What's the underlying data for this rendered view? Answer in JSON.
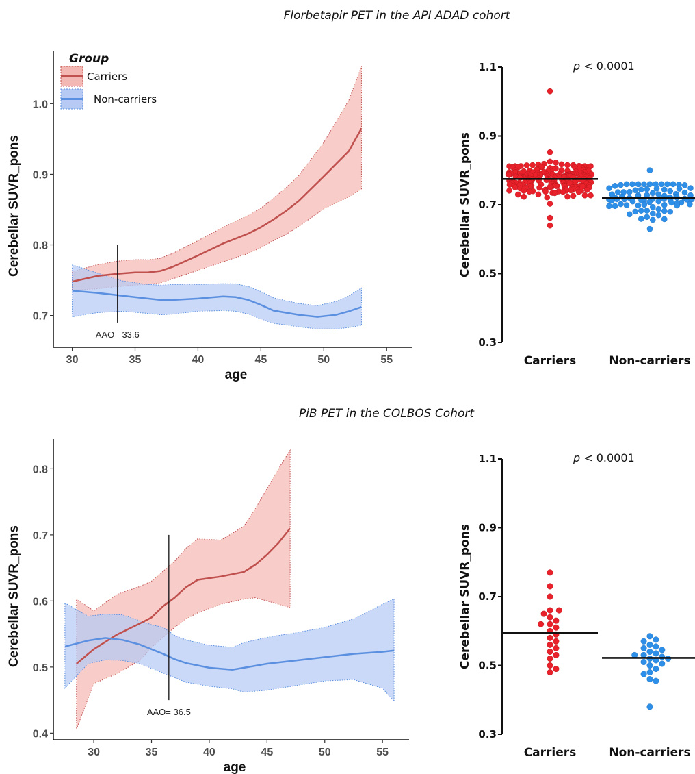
{
  "section_titles": [
    "Florbetapir PET in the API ADAD cohort",
    "PiB PET in the COLBOS Cohort"
  ],
  "colors": {
    "carriers_line": "#c0504d",
    "carriers_fill": "#f4b8b4",
    "noncarriers_line": "#5b8fe0",
    "noncarriers_fill": "#b6caf4",
    "carriers_dot": "#e8212a",
    "noncarriers_dot": "#2e8fe8"
  },
  "chart_data": [
    {
      "id": "api-line",
      "type": "line",
      "xlabel": "age",
      "ylabel": "Cerebellar SUVR_pons",
      "xlim": [
        28.5,
        57
      ],
      "ylim": [
        0.655,
        1.075
      ],
      "xticks": [
        30,
        35,
        40,
        45,
        50,
        55
      ],
      "yticks": [
        0.7,
        0.8,
        0.9,
        1.0
      ],
      "legend": {
        "title": "Group",
        "placement": "top-left",
        "items": [
          "Carriers",
          "Non-carriers"
        ]
      },
      "series": [
        {
          "name": "Carriers",
          "x": [
            30,
            32,
            33.6,
            35,
            36,
            37,
            38,
            40,
            42,
            44,
            45,
            46,
            47,
            48,
            50,
            52,
            53
          ],
          "y": [
            0.748,
            0.756,
            0.759,
            0.761,
            0.761,
            0.763,
            0.769,
            0.785,
            0.802,
            0.816,
            0.825,
            0.836,
            0.848,
            0.862,
            0.897,
            0.933,
            0.965
          ],
          "lower": [
            0.735,
            0.738,
            0.741,
            0.743,
            0.744,
            0.746,
            0.752,
            0.764,
            0.776,
            0.788,
            0.796,
            0.806,
            0.815,
            0.826,
            0.851,
            0.868,
            0.879
          ],
          "upper": [
            0.762,
            0.772,
            0.777,
            0.779,
            0.779,
            0.781,
            0.788,
            0.806,
            0.825,
            0.842,
            0.852,
            0.866,
            0.881,
            0.898,
            0.945,
            1.005,
            1.053
          ]
        },
        {
          "name": "Non-carriers",
          "x": [
            30,
            32,
            34,
            36,
            37,
            38,
            40,
            42,
            43,
            44,
            45,
            46,
            48,
            49.5,
            51,
            52,
            53
          ],
          "y": [
            0.735,
            0.732,
            0.728,
            0.724,
            0.722,
            0.722,
            0.724,
            0.727,
            0.726,
            0.722,
            0.715,
            0.707,
            0.701,
            0.698,
            0.701,
            0.706,
            0.712
          ],
          "lower": [
            0.698,
            0.704,
            0.706,
            0.703,
            0.701,
            0.702,
            0.706,
            0.707,
            0.706,
            0.702,
            0.695,
            0.689,
            0.684,
            0.681,
            0.681,
            0.683,
            0.686
          ],
          "upper": [
            0.772,
            0.76,
            0.749,
            0.744,
            0.743,
            0.744,
            0.744,
            0.745,
            0.745,
            0.741,
            0.734,
            0.725,
            0.717,
            0.714,
            0.72,
            0.728,
            0.739
          ]
        }
      ],
      "annotation": {
        "text": "AAO= 33.6",
        "x": 33.6,
        "y_from": 0.69,
        "y_to": 0.8
      }
    },
    {
      "id": "api-dot",
      "type": "scatter",
      "ylabel": "Cerebellar SUVR_pons",
      "ylim": [
        0.3,
        1.1
      ],
      "yticks": [
        0.3,
        0.5,
        0.7,
        0.9,
        1.1
      ],
      "categories": [
        "Carriers",
        "Non-carriers"
      ],
      "annotation": {
        "prefix": "p",
        "text": " < 0.0001"
      },
      "series": [
        {
          "name": "Carriers",
          "n": 210,
          "center": 0.775,
          "spread": 0.028,
          "min": 0.64,
          "max": 1.03,
          "mean": 0.775
        },
        {
          "name": "Non-carriers",
          "n": 85,
          "center": 0.72,
          "spread": 0.03,
          "min": 0.63,
          "max": 0.8,
          "mean": 0.72
        }
      ]
    },
    {
      "id": "colbos-line",
      "type": "line",
      "xlabel": "age",
      "ylabel": "Cerebellar SUVR_pons",
      "xlim": [
        26.5,
        57.3
      ],
      "ylim": [
        0.39,
        0.845
      ],
      "xticks": [
        30,
        35,
        40,
        45,
        50,
        55
      ],
      "yticks": [
        0.4,
        0.5,
        0.6,
        0.7,
        0.8
      ],
      "series": [
        {
          "name": "Carriers",
          "x": [
            28.5,
            30,
            32,
            34,
            35,
            36,
            37,
            38,
            39,
            41,
            43,
            44,
            45,
            46,
            47
          ],
          "y": [
            0.505,
            0.527,
            0.549,
            0.566,
            0.575,
            0.592,
            0.605,
            0.621,
            0.632,
            0.637,
            0.644,
            0.655,
            0.67,
            0.688,
            0.71
          ],
          "lower": [
            0.406,
            0.475,
            0.49,
            0.51,
            0.53,
            0.545,
            0.56,
            0.573,
            0.582,
            0.595,
            0.603,
            0.605,
            0.6,
            0.595,
            0.59
          ],
          "upper": [
            0.603,
            0.585,
            0.61,
            0.622,
            0.63,
            0.645,
            0.66,
            0.68,
            0.694,
            0.692,
            0.713,
            0.74,
            0.77,
            0.8,
            0.828
          ]
        },
        {
          "name": "Non-carriers",
          "x": [
            27.5,
            29.5,
            31,
            32.5,
            34,
            35,
            36,
            37,
            38,
            40,
            42,
            43,
            45,
            47.5,
            50,
            52.5,
            55,
            56
          ],
          "y": [
            0.531,
            0.54,
            0.544,
            0.541,
            0.534,
            0.527,
            0.52,
            0.512,
            0.506,
            0.499,
            0.496,
            0.499,
            0.505,
            0.51,
            0.515,
            0.52,
            0.523,
            0.525
          ],
          "lower": [
            0.468,
            0.505,
            0.511,
            0.51,
            0.505,
            0.498,
            0.491,
            0.484,
            0.477,
            0.471,
            0.467,
            0.462,
            0.465,
            0.472,
            0.479,
            0.481,
            0.468,
            0.448
          ],
          "upper": [
            0.597,
            0.577,
            0.58,
            0.579,
            0.57,
            0.564,
            0.56,
            0.548,
            0.541,
            0.533,
            0.53,
            0.537,
            0.545,
            0.552,
            0.56,
            0.573,
            0.595,
            0.603
          ]
        }
      ],
      "annotation": {
        "text": "AAO= 36.5",
        "x": 36.5,
        "y_from": 0.45,
        "y_to": 0.7
      }
    },
    {
      "id": "colbos-dot",
      "type": "scatter",
      "ylabel": "Cerebellar SUVR_pons",
      "ylim": [
        0.3,
        1.1
      ],
      "yticks": [
        0.3,
        0.5,
        0.7,
        0.9,
        1.1
      ],
      "categories": [
        "Carriers",
        "Non-carriers"
      ],
      "annotation": {
        "prefix": "p",
        "text": " < 0.0001"
      },
      "series": [
        {
          "name": "Carriers",
          "values": [
            0.77,
            0.73,
            0.7,
            0.66,
            0.66,
            0.65,
            0.64,
            0.63,
            0.62,
            0.62,
            0.61,
            0.6,
            0.59,
            0.58,
            0.57,
            0.56,
            0.55,
            0.54,
            0.53,
            0.52,
            0.5,
            0.49,
            0.48
          ],
          "mean": 0.595
        },
        {
          "name": "Non-carriers",
          "values": [
            0.585,
            0.57,
            0.575,
            0.56,
            0.555,
            0.55,
            0.545,
            0.54,
            0.535,
            0.53,
            0.53,
            0.525,
            0.52,
            0.52,
            0.515,
            0.51,
            0.505,
            0.5,
            0.49,
            0.48,
            0.475,
            0.46,
            0.455,
            0.38
          ],
          "mean": 0.522
        }
      ]
    }
  ]
}
